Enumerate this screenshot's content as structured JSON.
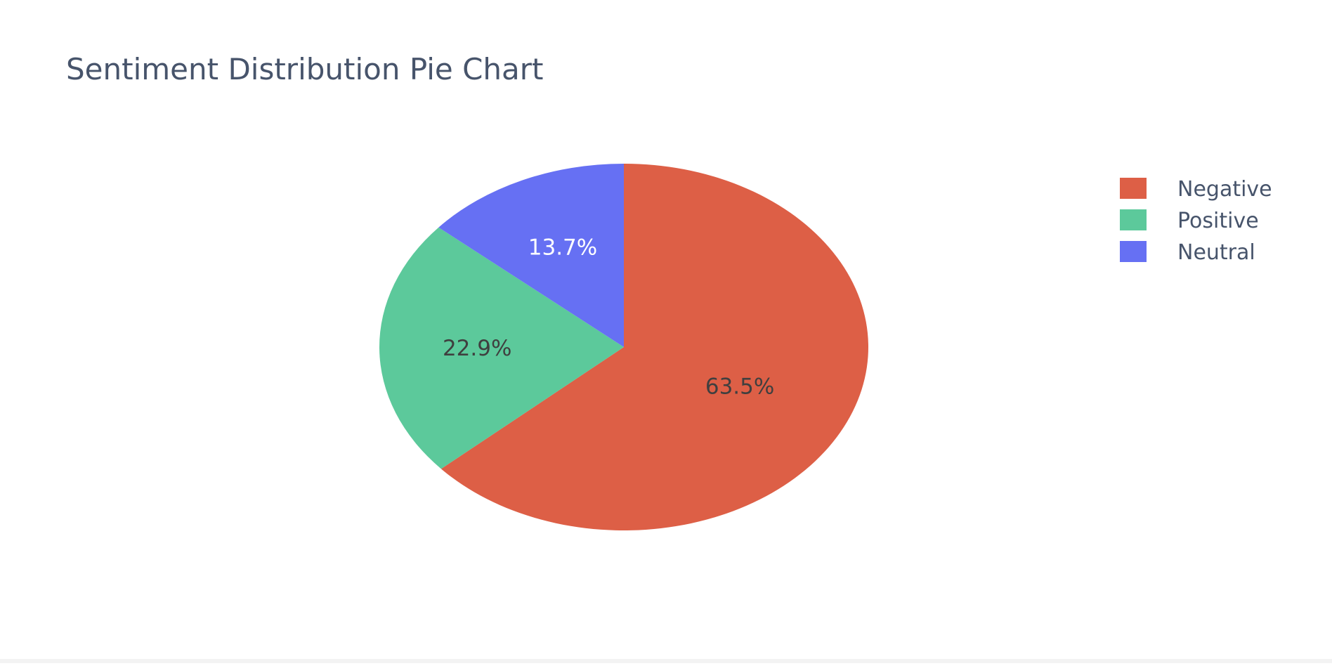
{
  "chart_data": {
    "type": "pie",
    "title": "Sentiment Distribution Pie Chart",
    "slices": [
      {
        "label": "Negative",
        "value": 63.5,
        "text": "63.5%",
        "color": "#dd5f46"
      },
      {
        "label": "Positive",
        "value": 22.9,
        "text": "22.9%",
        "color": "#5cc99b"
      },
      {
        "label": "Neutral",
        "value": 13.7,
        "text": "13.7%",
        "color": "#6670f3"
      }
    ],
    "direction": "clockwise",
    "start": "top",
    "legend": {
      "position": "top-right",
      "items": [
        "Negative",
        "Positive",
        "Neutral"
      ]
    },
    "colors": {
      "title_text": "#47546b",
      "legend_text": "#47546b",
      "label_dark": "#3f3f3f",
      "label_light": "#ffffff",
      "background": "#ffffff"
    }
  }
}
